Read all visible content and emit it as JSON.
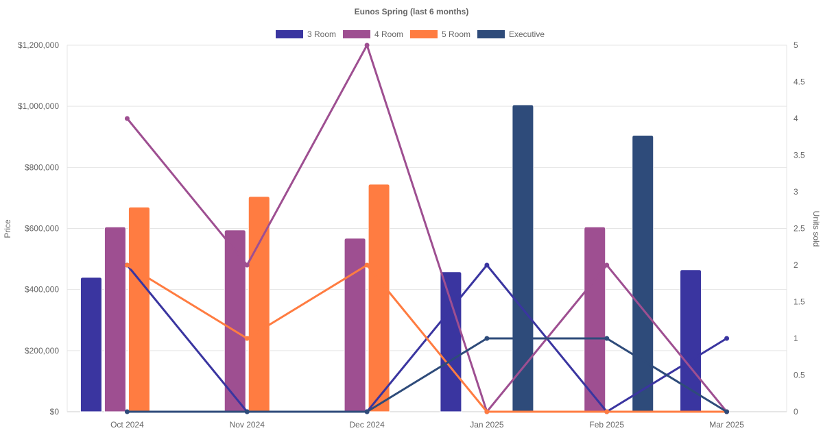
{
  "chart_data": {
    "type": "bar",
    "title": "Eunos Spring (last 6 months)",
    "categories": [
      "Oct 2024",
      "Nov 2024",
      "Dec 2024",
      "Jan 2025",
      "Feb 2025",
      "Mar 2025"
    ],
    "ylabel": "Price",
    "y2label": "Units sold",
    "ylim": [
      0,
      1200000
    ],
    "y2lim": [
      0,
      5
    ],
    "yticks": [
      "$0",
      "$200,000",
      "$400,000",
      "$600,000",
      "$800,000",
      "$1,000,000",
      "$1,200,000"
    ],
    "y2ticks": [
      "0",
      "0.5",
      "1",
      "1.5",
      "2",
      "2.5",
      "3",
      "3.5",
      "4",
      "4.5",
      "5"
    ],
    "legend_position": "top",
    "grid": true,
    "series": [
      {
        "name": "3 Room",
        "color": "#3a35a0",
        "bar_values": [
          440000,
          null,
          null,
          458000,
          null,
          465000
        ],
        "line_values": [
          2,
          0,
          0,
          2,
          0,
          1
        ]
      },
      {
        "name": "4 Room",
        "color": "#9e4f91",
        "bar_values": [
          605000,
          595000,
          568000,
          null,
          605000,
          null
        ],
        "line_values": [
          4,
          2,
          5,
          0,
          2,
          0
        ]
      },
      {
        "name": "5 Room",
        "color": "#ff7c41",
        "bar_values": [
          670000,
          705000,
          745000,
          null,
          null,
          null
        ],
        "line_values": [
          2,
          1,
          2,
          0,
          0,
          0
        ]
      },
      {
        "name": "Executive",
        "color": "#2e4b7a",
        "bar_values": [
          null,
          null,
          null,
          1005000,
          905000,
          null
        ],
        "line_values": [
          0,
          0,
          0,
          1,
          1,
          0
        ]
      }
    ]
  }
}
